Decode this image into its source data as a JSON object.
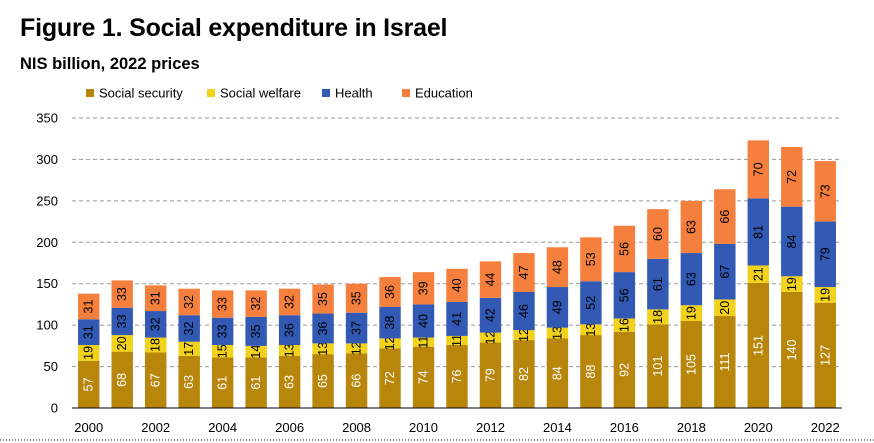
{
  "title": "Figure 1. Social expenditure in Israel",
  "subtitle": "NIS billion, 2022 prices",
  "chart_data": {
    "type": "bar",
    "stacked": true,
    "title": "Figure 1. Social expenditure in Israel",
    "subtitle": "NIS billion, 2022 prices",
    "xlabel": "",
    "ylabel": "",
    "ylim": [
      0,
      350
    ],
    "yticks": [
      0,
      50,
      100,
      150,
      200,
      250,
      300,
      350
    ],
    "grid": true,
    "legend": "top-left",
    "categories": [
      "2000",
      "2001",
      "2002",
      "2003",
      "2004",
      "2005",
      "2006",
      "2007",
      "2008",
      "2009",
      "2010",
      "2011",
      "2012",
      "2013",
      "2014",
      "2015",
      "2016",
      "2017",
      "2018",
      "2019",
      "2020",
      "2021",
      "2022"
    ],
    "xtick_labels": [
      "2000",
      "",
      "2002",
      "",
      "2004",
      "",
      "2006",
      "",
      "2008",
      "",
      "2010",
      "",
      "2012",
      "",
      "2014",
      "",
      "2016",
      "",
      "2018",
      "",
      "2020",
      "",
      "2022"
    ],
    "series": [
      {
        "name": "Social security",
        "color": "#B8860B",
        "values": [
          57,
          68,
          67,
          63,
          61,
          61,
          63,
          65,
          66,
          72,
          74,
          76,
          79,
          82,
          84,
          88,
          92,
          101,
          105,
          111,
          151,
          140,
          127
        ]
      },
      {
        "name": "Social welfare",
        "color": "#F2D21B",
        "values": [
          19,
          20,
          18,
          17,
          15,
          14,
          13,
          13,
          12,
          12,
          11,
          11,
          12,
          12,
          13,
          13,
          16,
          18,
          19,
          20,
          21,
          19,
          19
        ]
      },
      {
        "name": "Health",
        "color": "#3259B3",
        "values": [
          31,
          33,
          32,
          32,
          33,
          35,
          36,
          36,
          37,
          38,
          40,
          41,
          42,
          46,
          49,
          52,
          56,
          61,
          63,
          67,
          81,
          84,
          79
        ]
      },
      {
        "name": "Education",
        "color": "#F5803E",
        "values": [
          31,
          33,
          31,
          32,
          33,
          32,
          32,
          35,
          35,
          36,
          39,
          40,
          44,
          47,
          48,
          53,
          56,
          60,
          63,
          66,
          70,
          72,
          73
        ]
      }
    ]
  }
}
